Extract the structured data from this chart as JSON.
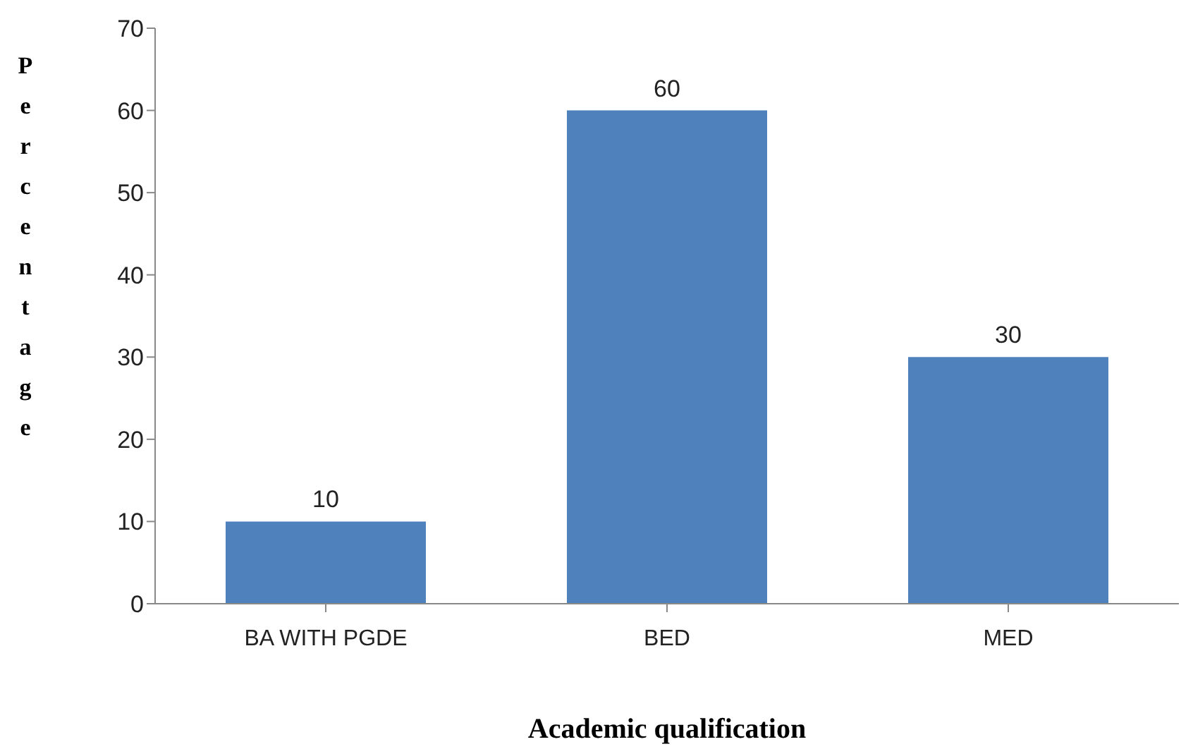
{
  "chart_data": {
    "type": "bar",
    "xlabel": "Academic qualification",
    "ylabel": "Percentage",
    "categories": [
      "BA WITH PGDE",
      "BED",
      "MED"
    ],
    "values": [
      10,
      60,
      30
    ],
    "color": "#4f81bd",
    "ylim": [
      0,
      70
    ],
    "yticks": [
      0,
      10,
      20,
      30,
      40,
      50,
      60,
      70
    ],
    "grid": false,
    "data_labels": true
  }
}
